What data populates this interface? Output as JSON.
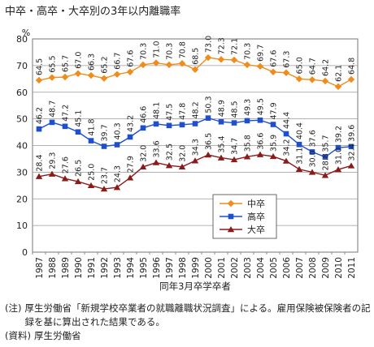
{
  "chart_data": {
    "type": "line",
    "title": "中卒・高卒・大卒別の3年以内離職率",
    "ylabel_unit": "%",
    "xlabel": "同年3月卒学卒者",
    "ylim": [
      0,
      80
    ],
    "yticks": [
      0,
      10,
      20,
      30,
      40,
      50,
      60,
      70,
      80
    ],
    "grid": true,
    "legend_position": "center-right",
    "x": [
      "1987",
      "1988",
      "1989",
      "1990",
      "1991",
      "1992",
      "1993",
      "1994",
      "1995",
      "1996",
      "1997",
      "1998",
      "1999",
      "2000",
      "2001",
      "2002",
      "2003",
      "2004",
      "2005",
      "2006",
      "2007",
      "2008",
      "2009",
      "2010",
      "2011"
    ],
    "series": [
      {
        "name": "中卒",
        "color": "#f08c1c",
        "marker": "diamond",
        "values": [
          64.5,
          65.5,
          65.7,
          67.0,
          66.3,
          65.2,
          66.7,
          67.6,
          70.3,
          71.0,
          70.3,
          70.8,
          68.5,
          73.0,
          72.3,
          72.1,
          70.3,
          69.7,
          67.6,
          67.3,
          65.0,
          64.7,
          64.2,
          62.1,
          64.8
        ]
      },
      {
        "name": "高卒",
        "color": "#1e4fcf",
        "marker": "square",
        "values": [
          46.2,
          48.7,
          47.2,
          45.1,
          41.8,
          39.7,
          40.3,
          43.2,
          46.6,
          48.1,
          47.5,
          47.8,
          48.2,
          50.3,
          48.9,
          48.5,
          49.3,
          49.5,
          47.9,
          44.4,
          40.4,
          37.6,
          35.7,
          39.2,
          39.6
        ]
      },
      {
        "name": "大卒",
        "color": "#8b1a1a",
        "marker": "triangle",
        "values": [
          28.4,
          29.3,
          27.6,
          26.5,
          25.0,
          23.7,
          24.3,
          27.9,
          32.0,
          33.6,
          32.5,
          32.0,
          34.3,
          36.5,
          35.4,
          34.7,
          35.8,
          36.6,
          35.9,
          34.2,
          31.1,
          30.0,
          28.8,
          31.0,
          32.4
        ]
      }
    ]
  },
  "notes": {
    "note_tag": "(注)",
    "note_text": "厚生労働省「新規学校卒業者の就職離職状況調査」による。雇用保険被保険者の記録を基に算出された結果である。",
    "source_tag": "(資料)",
    "source_text": "厚生労働省"
  }
}
